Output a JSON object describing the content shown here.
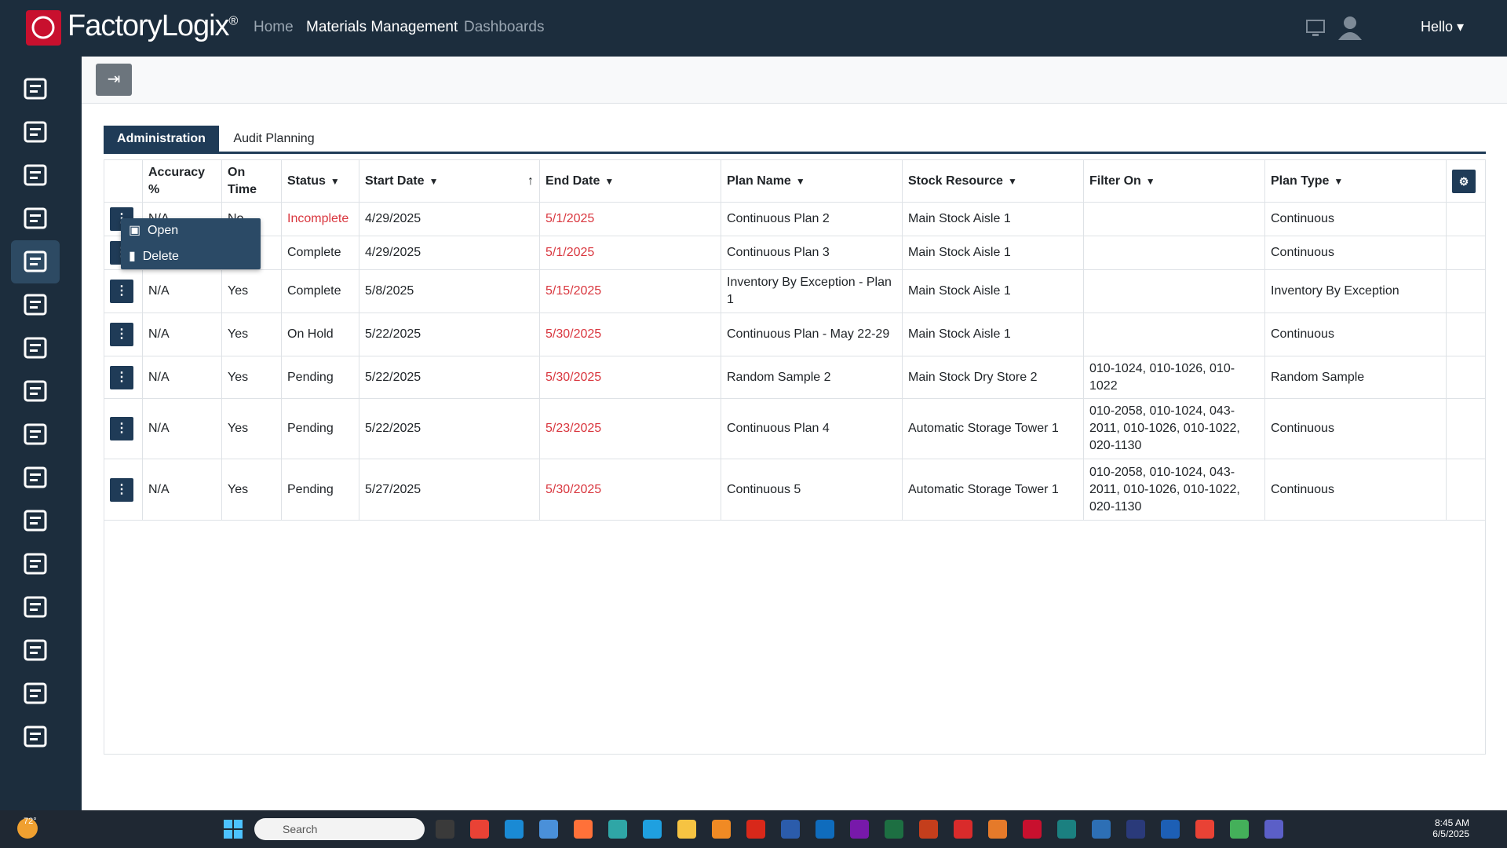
{
  "header": {
    "brand": "FactoryLogix",
    "brand_mark": "®",
    "nav": [
      "Home",
      "Materials Management",
      "Dashboards"
    ],
    "user": "Hello"
  },
  "tabs": [
    "Administration",
    "Audit Planning"
  ],
  "table": {
    "columns": [
      "Accuracy %",
      "On Time",
      "Status",
      "Start Date",
      "End Date",
      "Plan Name",
      "Stock Resource",
      "Filter On",
      "Plan Type"
    ],
    "rows": [
      [
        "N/A",
        "No",
        "Incomplete",
        "4/29/2025",
        "5/1/2025",
        "Continuous Plan 2",
        "Main Stock Aisle 1",
        null,
        "Continuous"
      ],
      [
        null,
        null,
        "Complete",
        "4/29/2025",
        "5/1/2025",
        "Continuous Plan 3",
        "Main Stock Aisle 1",
        null,
        "Continuous"
      ],
      [
        "N/A",
        "Yes",
        "Complete",
        "5/8/2025",
        "5/15/2025",
        "Inventory By Exception - Plan 1",
        "Main Stock Aisle 1",
        null,
        "Inventory By Exception"
      ],
      [
        "N/A",
        "Yes",
        "On Hold",
        "5/22/2025",
        "5/30/2025",
        "Continuous Plan - May 22-29",
        "Main Stock Aisle 1",
        null,
        "Continuous"
      ],
      [
        "N/A",
        "Yes",
        "Pending",
        "5/22/2025",
        "5/30/2025",
        "Random Sample 2",
        "Main Stock Dry Store 2",
        "010-1024, 010-1026, 010-1022",
        "Random Sample"
      ],
      [
        "N/A",
        "Yes",
        "Pending",
        "5/22/2025",
        "5/23/2025",
        "Continuous Plan 4",
        "Automatic Storage Tower 1",
        "010-2058, 010-1024, 043-2011, 010-1026, 010-1022, 020-1130",
        "Continuous"
      ],
      [
        "N/A",
        "Yes",
        "Pending",
        "5/27/2025",
        "5/30/2025",
        "Continuous 5",
        "Automatic Storage Tower 1",
        "010-2058, 010-1024, 043-2011, 010-1026, 010-1022, 020-1130",
        "Continuous"
      ]
    ]
  },
  "context_menu": [
    "Open",
    "Delete"
  ],
  "taskbar": {
    "weather": "72°",
    "search": "Search",
    "time": "8:45 AM",
    "date": "6/5/2025"
  }
}
